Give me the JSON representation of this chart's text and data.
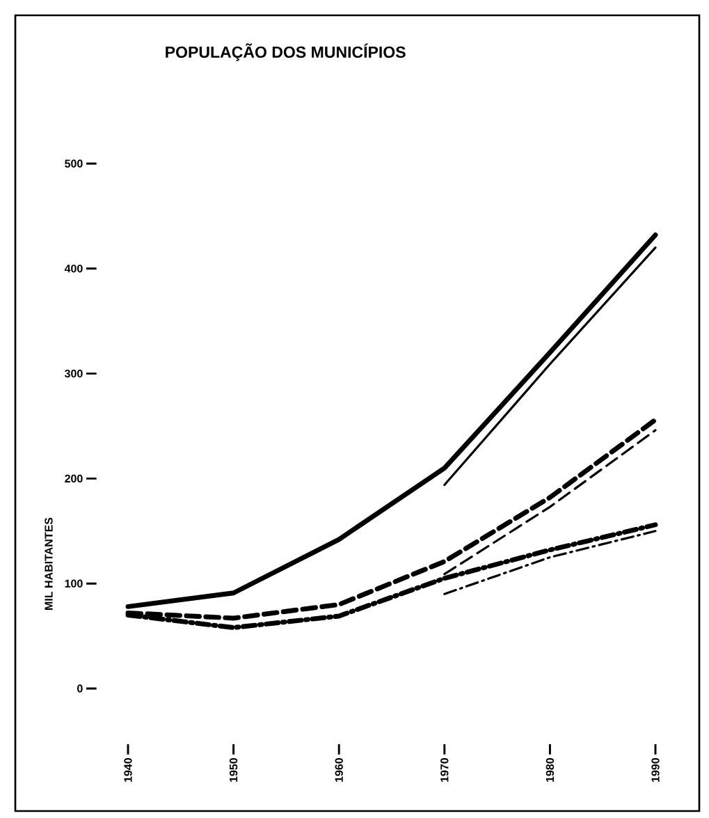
{
  "chart_data": {
    "type": "line",
    "title": "POPULAÇÃO DOS MUNICÍPIOS",
    "ylabel": "MIL    HABITANTES",
    "x": [
      1940,
      1950,
      1960,
      1970,
      1980,
      1990
    ],
    "xlim": [
      1940,
      1990
    ],
    "xticks": [
      1940,
      1950,
      1960,
      1970,
      1980,
      1990
    ],
    "ylim": [
      0,
      500
    ],
    "yticks": [
      0,
      100,
      200,
      300,
      400,
      500
    ],
    "grid": false,
    "marker": "none",
    "series": [
      {
        "color": "#000000",
        "line_style": "solid",
        "values": [
          78,
          91,
          142,
          210,
          320,
          432
        ]
      },
      {
        "color": "#000000",
        "line_style": "solid",
        "x": [
          1970,
          1980,
          1990
        ],
        "values": [
          194,
          309,
          420
        ]
      },
      {
        "color": "#000000",
        "line_style": "dashed",
        "values": [
          72,
          67,
          80,
          121,
          182,
          256
        ]
      },
      {
        "color": "#000000",
        "line_style": "dashed",
        "x": [
          1970,
          1980,
          1990
        ],
        "values": [
          109,
          173,
          246
        ]
      },
      {
        "color": "#000000",
        "line_style": "dashdot",
        "values": [
          70,
          58,
          69,
          105,
          132,
          156
        ]
      },
      {
        "color": "#000000",
        "line_style": "dashdot",
        "x": [
          1970,
          1980,
          1990
        ],
        "values": [
          90,
          125,
          150
        ]
      }
    ]
  }
}
